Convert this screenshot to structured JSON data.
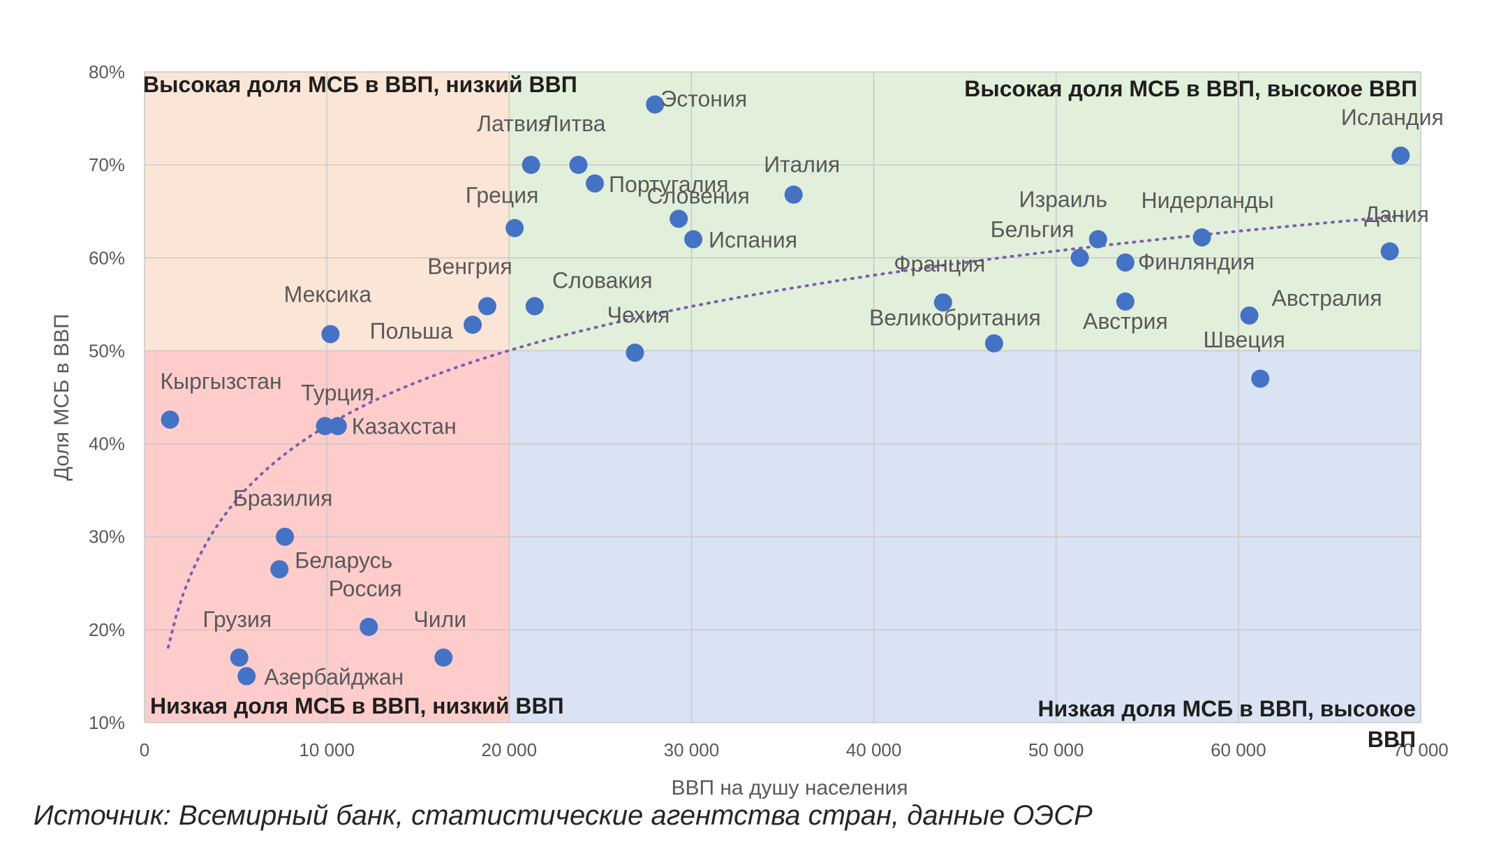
{
  "chart_data": {
    "type": "scatter",
    "xlabel": "ВВП на душу населения",
    "ylabel": "Доля МСБ в ВВП",
    "xlim": [
      0,
      70000
    ],
    "ylim": [
      10,
      80
    ],
    "x_ticks": [
      0,
      10000,
      20000,
      30000,
      40000,
      50000,
      60000,
      70000
    ],
    "x_tick_labels": [
      "0",
      "10 000",
      "20 000",
      "30 000",
      "40 000",
      "50 000",
      "60 000",
      "70 000"
    ],
    "y_ticks": [
      10,
      20,
      30,
      40,
      50,
      60,
      70,
      80
    ],
    "y_tick_labels": [
      "10%",
      "20%",
      "30%",
      "40%",
      "50%",
      "60%",
      "70%",
      "80%"
    ],
    "grid": true,
    "quadrant_split": {
      "x": 20000,
      "y": 50
    },
    "quadrants": [
      {
        "name": "Высокая доля МСБ в ВВП, низкий ВВП",
        "color": "#fbe5d6"
      },
      {
        "name": "Высокая доля МСБ в  ВВП, высокое ВВП",
        "color": "#e2efda"
      },
      {
        "name": "Низкая доля МСБ в  ВВП, низкий ВВП",
        "color": "#ffcccc"
      },
      {
        "name": "Низкая доля МСБ в  ВВП, высокое ВВП",
        "color": "#dae3f3"
      }
    ],
    "points": [
      {
        "label": "Эстония",
        "x": 28000,
        "y": 76.5
      },
      {
        "label": "Латвия",
        "x": 21200,
        "y": 70
      },
      {
        "label": "Литва",
        "x": 23800,
        "y": 70
      },
      {
        "label": "Португалия",
        "x": 24700,
        "y": 68
      },
      {
        "label": "Италия",
        "x": 35600,
        "y": 66.8
      },
      {
        "label": "Греция",
        "x": 20300,
        "y": 63.2
      },
      {
        "label": "Словения",
        "x": 29300,
        "y": 64.2
      },
      {
        "label": "Испания",
        "x": 30100,
        "y": 62
      },
      {
        "label": "Исландия",
        "x": 68900,
        "y": 71
      },
      {
        "label": "Израиль",
        "x": 52300,
        "y": 62
      },
      {
        "label": "Нидерланды",
        "x": 58000,
        "y": 62.2
      },
      {
        "label": "Дания",
        "x": 68300,
        "y": 60.7
      },
      {
        "label": "Бельгия",
        "x": 51300,
        "y": 60
      },
      {
        "label": "Финляндия",
        "x": 53800,
        "y": 59.5
      },
      {
        "label": "Франция",
        "x": 43800,
        "y": 55.2
      },
      {
        "label": "Австрия",
        "x": 53800,
        "y": 55.3
      },
      {
        "label": "Австралия",
        "x": 60600,
        "y": 53.8
      },
      {
        "label": "Великобритания",
        "x": 46600,
        "y": 50.8
      },
      {
        "label": "Швеция",
        "x": 61200,
        "y": 47
      },
      {
        "label": "Венгрия",
        "x": 18800,
        "y": 54.8
      },
      {
        "label": "Словакия",
        "x": 21400,
        "y": 54.8
      },
      {
        "label": "Чехия",
        "x": 26900,
        "y": 49.8
      },
      {
        "label": "Мексика",
        "x": 10200,
        "y": 51.8
      },
      {
        "label": "Польша",
        "x": 18000,
        "y": 52.8
      },
      {
        "label": "Кыргызстан",
        "x": 1400,
        "y": 42.6
      },
      {
        "label": "Турция",
        "x": 9900,
        "y": 41.9
      },
      {
        "label": "Казахстан",
        "x": 10600,
        "y": 41.9
      },
      {
        "label": "Бразилия",
        "x": 7700,
        "y": 30
      },
      {
        "label": "Беларусь",
        "x": 7400,
        "y": 26.5
      },
      {
        "label": "Россия",
        "x": 12300,
        "y": 20.3
      },
      {
        "label": "Грузия",
        "x": 5200,
        "y": 17
      },
      {
        "label": "Азербайджан",
        "x": 5600,
        "y": 15
      },
      {
        "label": "Чили",
        "x": 16400,
        "y": 17
      }
    ],
    "trendline": {
      "type": "logarithmic",
      "style": "dotted",
      "color": "#7b5fae"
    },
    "source": "Источник: Всемирный банк, статистические агентства стран, данные ОЭСР"
  }
}
